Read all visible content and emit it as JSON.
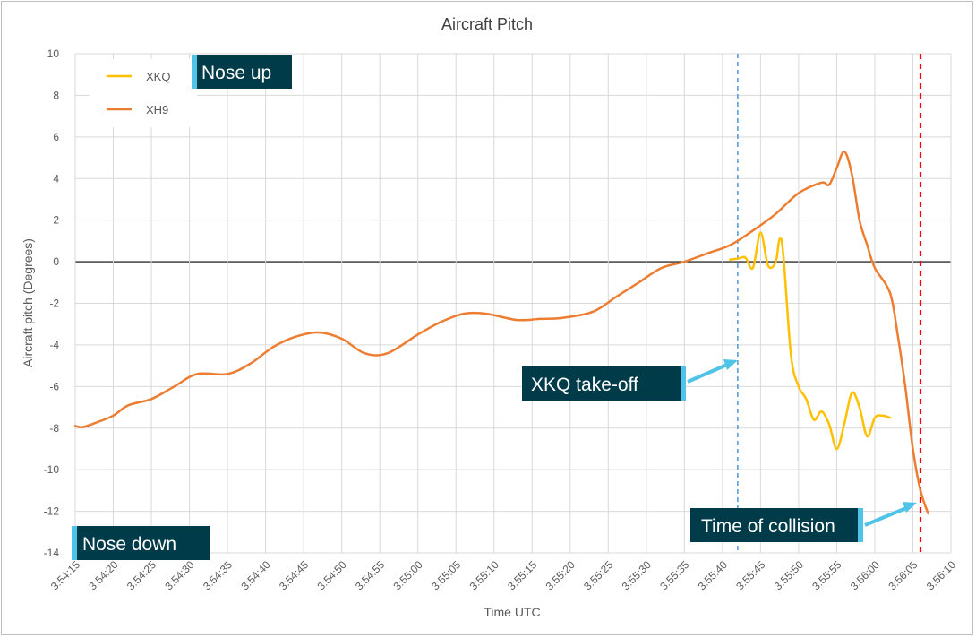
{
  "chart_data": {
    "type": "line",
    "title": "Aircraft Pitch",
    "xlabel": "Time UTC",
    "ylabel": "Aircraft pitch (Degrees)",
    "ylim": [
      -14,
      10
    ],
    "yticks": [
      -14,
      -12,
      -10,
      -8,
      -6,
      -4,
      -2,
      0,
      2,
      4,
      6,
      8,
      10
    ],
    "xlim": [
      "3:54:15",
      "3:56:10"
    ],
    "xticks": [
      "3:54:15",
      "3:54:20",
      "3:54:25",
      "3:54:30",
      "3:54:35",
      "3:54:40",
      "3:54:45",
      "3:54:50",
      "3:54:55",
      "3:55:00",
      "3:55:05",
      "3:55:10",
      "3:55:15",
      "3:55:20",
      "3:55:25",
      "3:55:30",
      "3:55:35",
      "3:55:40",
      "3:55:45",
      "3:55:50",
      "3:55:55",
      "3:56:00",
      "3:56:05",
      "3:56:10"
    ],
    "grid": true,
    "legend": "top-left",
    "series": [
      {
        "name": "XKQ",
        "color": "#FFC000",
        "points": [
          [
            "3:55:41",
            0.1
          ],
          [
            "3:55:42",
            0.15
          ],
          [
            "3:55:43",
            0.2
          ],
          [
            "3:55:44",
            -0.3
          ],
          [
            "3:55:45",
            1.4
          ],
          [
            "3:55:46",
            -0.2
          ],
          [
            "3:55:47",
            0.0
          ],
          [
            "3:55:47.5",
            1.1
          ],
          [
            "3:55:48",
            0.3
          ],
          [
            "3:55:49",
            -4.5
          ],
          [
            "3:55:50",
            -6.0
          ],
          [
            "3:55:51",
            -6.6
          ],
          [
            "3:55:52",
            -7.6
          ],
          [
            "3:55:53",
            -7.2
          ],
          [
            "3:55:54",
            -7.8
          ],
          [
            "3:55:55",
            -9.0
          ],
          [
            "3:55:56",
            -7.8
          ],
          [
            "3:55:57",
            -6.3
          ],
          [
            "3:55:58",
            -7.0
          ],
          [
            "3:55:59",
            -8.4
          ],
          [
            "3:56:00",
            -7.5
          ],
          [
            "3:56:01",
            -7.4
          ],
          [
            "3:56:02",
            -7.5
          ]
        ]
      },
      {
        "name": "XH9",
        "color": "#ED7D31",
        "points": [
          [
            "3:54:15",
            -7.9
          ],
          [
            "3:54:16",
            -7.95
          ],
          [
            "3:54:18",
            -7.7
          ],
          [
            "3:54:20",
            -7.4
          ],
          [
            "3:54:22",
            -6.9
          ],
          [
            "3:54:25",
            -6.6
          ],
          [
            "3:54:28",
            -6.0
          ],
          [
            "3:54:31",
            -5.4
          ],
          [
            "3:54:35",
            -5.4
          ],
          [
            "3:54:38",
            -4.9
          ],
          [
            "3:54:41",
            -4.1
          ],
          [
            "3:54:44",
            -3.6
          ],
          [
            "3:54:47",
            -3.4
          ],
          [
            "3:54:50",
            -3.7
          ],
          [
            "3:54:53",
            -4.4
          ],
          [
            "3:54:56",
            -4.4
          ],
          [
            "3:55:00",
            -3.5
          ],
          [
            "3:55:03",
            -2.9
          ],
          [
            "3:55:06",
            -2.5
          ],
          [
            "3:55:09",
            -2.5
          ],
          [
            "3:55:13",
            -2.8
          ],
          [
            "3:55:16",
            -2.75
          ],
          [
            "3:55:19",
            -2.7
          ],
          [
            "3:55:23",
            -2.4
          ],
          [
            "3:55:26",
            -1.7
          ],
          [
            "3:55:29",
            -1.0
          ],
          [
            "3:55:32",
            -0.3
          ],
          [
            "3:55:35",
            0.0
          ],
          [
            "3:55:38",
            0.4
          ],
          [
            "3:55:41",
            0.8
          ],
          [
            "3:55:44",
            1.5
          ],
          [
            "3:55:47",
            2.3
          ],
          [
            "3:55:50",
            3.3
          ],
          [
            "3:55:53",
            3.8
          ],
          [
            "3:55:54",
            3.7
          ],
          [
            "3:55:55",
            4.5
          ],
          [
            "3:55:56",
            5.3
          ],
          [
            "3:55:57",
            4.2
          ],
          [
            "3:55:58",
            2.0
          ],
          [
            "3:55:59",
            0.8
          ],
          [
            "3:56:00",
            -0.3
          ],
          [
            "3:56:02",
            -1.5
          ],
          [
            "3:56:03",
            -3.5
          ],
          [
            "3:56:04",
            -6.0
          ],
          [
            "3:56:05",
            -9.0
          ],
          [
            "3:56:06",
            -11.0
          ],
          [
            "3:56:07",
            -12.1
          ]
        ]
      }
    ],
    "reference_lines": [
      {
        "x": "3:55:42",
        "color": "#5B9BD5",
        "style": "dashed"
      },
      {
        "x": "3:56:06",
        "color": "#FF0000",
        "style": "dashed"
      }
    ],
    "annotations": {
      "nose_up": "Nose up",
      "nose_down": "Nose down",
      "takeoff": "XKQ take-off",
      "collision": "Time of collision"
    },
    "colors": {
      "callout_box": "#003B4A",
      "callout_accent": "#4FC3E8",
      "arrow": "#4FC3E8",
      "zero_line": "#000000",
      "grid": "#d9d9d9"
    }
  }
}
